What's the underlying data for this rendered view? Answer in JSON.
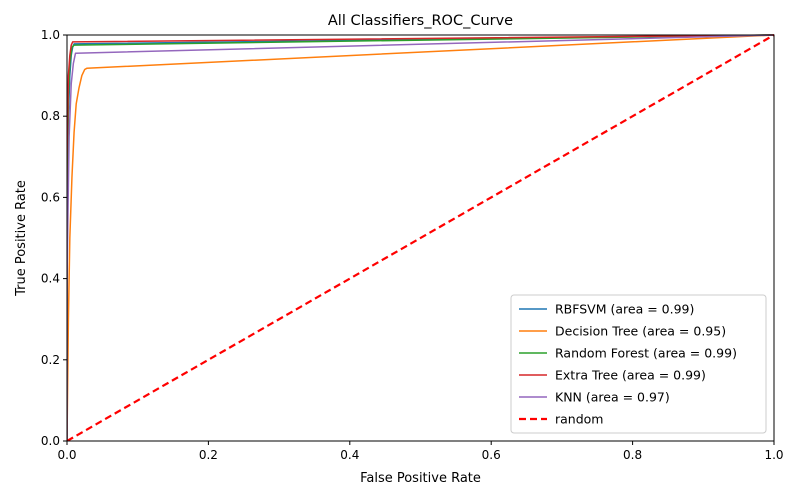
{
  "chart_data": {
    "type": "line",
    "title": "All Classifiers_ROC_Curve",
    "xlabel": "False Positive Rate",
    "ylabel": "True Positive Rate",
    "xlim": [
      0,
      1
    ],
    "ylim": [
      0,
      1
    ],
    "xticks": [
      "0.0",
      "0.2",
      "0.4",
      "0.6",
      "0.8",
      "1.0"
    ],
    "yticks": [
      "0.0",
      "0.2",
      "0.4",
      "0.6",
      "0.8",
      "1.0"
    ],
    "grid": false,
    "legend_position": "bottom-right",
    "series": [
      {
        "name": "RBFSVM (area = 0.99)",
        "color": "#1f77b4",
        "dash": "solid",
        "x": [
          0,
          0,
          0.002,
          0.004,
          0.006,
          0.008,
          0.01,
          1
        ],
        "y": [
          0,
          0.5,
          0.8,
          0.9,
          0.95,
          0.97,
          0.978,
          1
        ]
      },
      {
        "name": "Decision Tree  (area = 0.95)",
        "color": "#ff7f0e",
        "dash": "solid",
        "x": [
          0,
          0.002,
          0.004,
          0.007,
          0.01,
          0.013,
          0.017,
          0.021,
          0.025,
          0.028,
          1
        ],
        "y": [
          0,
          0.3,
          0.5,
          0.65,
          0.76,
          0.83,
          0.87,
          0.9,
          0.915,
          0.918,
          1
        ]
      },
      {
        "name": "Random Forest (area = 0.99)",
        "color": "#2ca02c",
        "dash": "solid",
        "x": [
          0,
          0,
          0.002,
          0.004,
          0.007,
          0.01,
          1
        ],
        "y": [
          0,
          0.6,
          0.85,
          0.93,
          0.97,
          0.975,
          1
        ]
      },
      {
        "name": "Extra Tree  (area = 0.99)",
        "color": "#d62728",
        "dash": "solid",
        "x": [
          0,
          0,
          0.002,
          0.004,
          0.006,
          0.008,
          1
        ],
        "y": [
          0,
          0.7,
          0.9,
          0.95,
          0.975,
          0.983,
          1
        ]
      },
      {
        "name": "KNN (area = 0.97)",
        "color": "#9467bd",
        "dash": "solid",
        "x": [
          0,
          0,
          0.003,
          0.006,
          0.009,
          0.012,
          1
        ],
        "y": [
          0,
          0.4,
          0.75,
          0.88,
          0.93,
          0.955,
          1
        ]
      },
      {
        "name": "random",
        "color": "#ff0000",
        "dash": "dashed",
        "x": [
          0,
          1
        ],
        "y": [
          0,
          1
        ]
      }
    ]
  }
}
